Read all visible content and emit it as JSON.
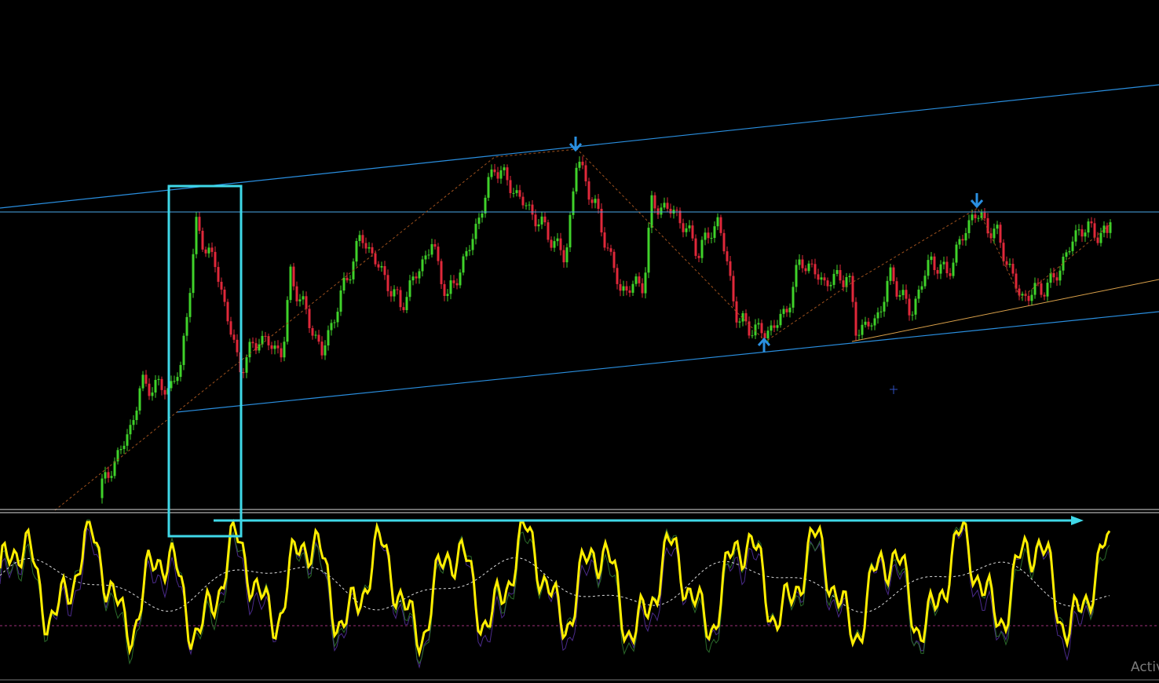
{
  "watermark": {
    "text": "Activ"
  }
}
